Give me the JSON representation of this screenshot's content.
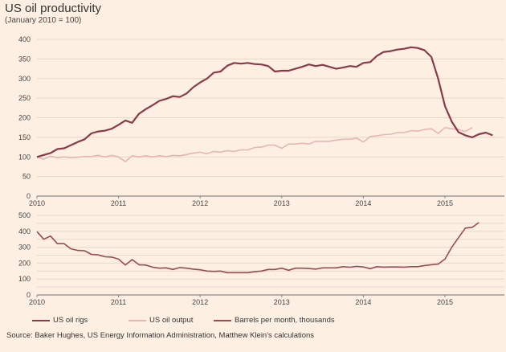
{
  "header": {
    "title": "US oil productivity",
    "subtitle": "(January 2010 = 100)"
  },
  "legend": [
    {
      "label": "US oil rigs",
      "color": "#8b3a4a"
    },
    {
      "label": "US oil output",
      "color": "#e8b4b8"
    },
    {
      "label": "Barrels per month, thousands",
      "color": "#9b4a55"
    }
  ],
  "source": "Source: Baker Hughes, US Energy Information Administration, Matthew Klein's calculations",
  "chart_data": [
    {
      "type": "line",
      "title": "US oil productivity",
      "subtitle": "(January 2010 = 100)",
      "xlabel": "",
      "ylabel": "",
      "xlim": [
        2010.0,
        2015.8
      ],
      "ylim": [
        0,
        400
      ],
      "yticks": [
        0,
        50,
        100,
        150,
        200,
        250,
        300,
        350,
        400
      ],
      "xticks": [
        "2010",
        "2011",
        "2012",
        "2013",
        "2014",
        "2015"
      ],
      "grid": true,
      "series": [
        {
          "name": "US oil rigs",
          "color": "#8b3a4a",
          "start": 2010.0,
          "step_months": 1,
          "values": [
            100,
            105,
            110,
            120,
            122,
            130,
            138,
            145,
            160,
            165,
            167,
            172,
            182,
            193,
            187,
            210,
            222,
            232,
            243,
            248,
            255,
            253,
            262,
            278,
            290,
            300,
            315,
            318,
            333,
            340,
            338,
            340,
            337,
            336,
            332,
            318,
            320,
            320,
            325,
            330,
            336,
            332,
            335,
            330,
            325,
            328,
            332,
            330,
            340,
            342,
            358,
            368,
            370,
            374,
            376,
            380,
            378,
            372,
            355,
            300,
            230,
            190,
            163,
            155,
            150,
            158,
            162,
            155
          ]
        },
        {
          "name": "US oil output",
          "color": "#e8b4b8",
          "start": 2010.0,
          "step_months": 1,
          "values": [
            100,
            94,
            102,
            98,
            100,
            98,
            99,
            101,
            101,
            104,
            100,
            104,
            100,
            88,
            103,
            100,
            103,
            100,
            103,
            101,
            104,
            103,
            106,
            110,
            112,
            108,
            114,
            112,
            116,
            114,
            118,
            118,
            124,
            125,
            130,
            130,
            122,
            133,
            133,
            135,
            133,
            140,
            140,
            140,
            143,
            145,
            145,
            148,
            138,
            152,
            154,
            157,
            158,
            162,
            162,
            167,
            166,
            170,
            172,
            160,
            175,
            172,
            170,
            165,
            175
          ]
        }
      ]
    },
    {
      "type": "line",
      "title": "Barrels per month, thousands",
      "xlabel": "",
      "ylabel": "",
      "xlim": [
        2010.0,
        2015.8
      ],
      "ylim": [
        0,
        500
      ],
      "yticks": [
        0,
        100,
        200,
        300,
        400,
        500
      ],
      "xticks": [
        "2010",
        "2011",
        "2012",
        "2013",
        "2014",
        "2015"
      ],
      "grid": true,
      "series": [
        {
          "name": "Barrels per month, thousands",
          "color": "#9b4a55",
          "start": 2010.0,
          "step_months": 1,
          "values": [
            398,
            350,
            370,
            322,
            322,
            290,
            280,
            278,
            255,
            252,
            240,
            238,
            225,
            188,
            222,
            190,
            188,
            175,
            168,
            170,
            160,
            172,
            168,
            162,
            158,
            150,
            148,
            150,
            140,
            140,
            140,
            140,
            146,
            150,
            160,
            160,
            168,
            155,
            168,
            168,
            166,
            162,
            170,
            170,
            170,
            178,
            174,
            180,
            176,
            165,
            178,
            175,
            176,
            176,
            175,
            178,
            178,
            185,
            190,
            194,
            225,
            300,
            360,
            420,
            425,
            455
          ]
        }
      ]
    }
  ]
}
